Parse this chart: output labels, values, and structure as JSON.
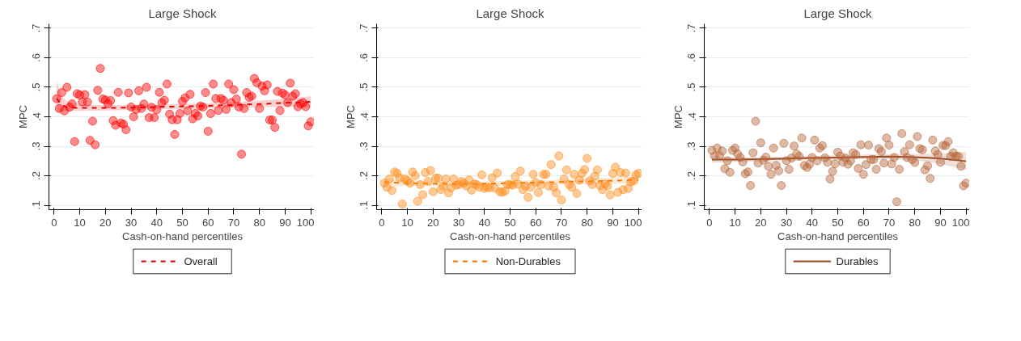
{
  "chart_data": [
    {
      "type": "scatter",
      "title": "Large Shock",
      "xlabel": "Cash-on-hand percentiles",
      "ylabel": "MPC",
      "xlim": [
        -2,
        102
      ],
      "ylim": [
        0.085,
        0.715
      ],
      "xticks": [
        0,
        10,
        20,
        30,
        40,
        50,
        60,
        70,
        80,
        90,
        100
      ],
      "yticks": [
        {
          "value": 0.1,
          "label": ".1"
        },
        {
          "value": 0.2,
          "label": ".2"
        },
        {
          "value": 0.3,
          "label": ".3"
        },
        {
          "value": 0.4,
          "label": ".4"
        },
        {
          "value": 0.5,
          "label": ".5"
        },
        {
          "value": 0.6,
          "label": ".6"
        },
        {
          "value": 0.7,
          "label": ".7"
        }
      ],
      "grid": "y",
      "legend": "bottom",
      "series": [
        {
          "marker": "circle",
          "color": "#ff0000",
          "x": [
            1,
            2,
            3,
            4,
            5,
            6,
            7,
            8,
            9,
            10,
            11,
            12,
            13,
            14,
            15,
            16,
            17,
            18,
            19,
            20,
            21,
            22,
            23,
            24,
            25,
            26,
            27,
            28,
            29,
            30,
            31,
            32,
            33,
            34,
            35,
            36,
            37,
            38,
            39,
            40,
            41,
            42,
            43,
            44,
            45,
            46,
            47,
            48,
            49,
            50,
            51,
            52,
            53,
            54,
            55,
            56,
            57,
            58,
            59,
            60,
            61,
            62,
            63,
            64,
            65,
            66,
            67,
            68,
            69,
            70,
            71,
            72,
            73,
            74,
            75,
            76,
            77,
            78,
            79,
            80,
            81,
            82,
            83,
            84,
            85,
            86,
            87,
            88,
            89,
            90,
            91,
            92,
            93,
            94,
            95,
            96,
            97,
            98,
            99,
            100
          ],
          "values": [
            0.461,
            0.428,
            0.482,
            0.42,
            0.5,
            0.432,
            0.444,
            0.316,
            0.478,
            0.474,
            0.45,
            0.475,
            0.45,
            0.32,
            0.385,
            0.305,
            0.49,
            0.564,
            0.46,
            0.457,
            0.444,
            0.455,
            0.387,
            0.371,
            0.483,
            0.379,
            0.375,
            0.356,
            0.481,
            0.433,
            0.4,
            0.425,
            0.488,
            0.428,
            0.443,
            0.5,
            0.397,
            0.432,
            0.397,
            0.424,
            0.483,
            0.448,
            0.456,
            0.511,
            0.409,
            0.39,
            0.34,
            0.39,
            0.411,
            0.452,
            0.464,
            0.42,
            0.476,
            0.393,
            0.411,
            0.403,
            0.436,
            0.433,
            0.482,
            0.351,
            0.411,
            0.511,
            0.462,
            0.421,
            0.462,
            0.456,
            0.425,
            0.511,
            0.448,
            0.492,
            0.46,
            0.433,
            0.273,
            0.428,
            0.482,
            0.466,
            0.47,
            0.53,
            0.515,
            0.428,
            0.504,
            0.488,
            0.508,
            0.389,
            0.389,
            0.364,
            0.486,
            0.421,
            0.48,
            0.474,
            0.448,
            0.514,
            0.47,
            0.478,
            0.434,
            0.444,
            0.448,
            0.434,
            0.369,
            0.383
          ]
        },
        {
          "type": "line",
          "name": "Overall",
          "color": "#e00000",
          "line_style": "dashed",
          "x": [
            1,
            3,
            5,
            10,
            20,
            30,
            40,
            50,
            60,
            70,
            80,
            90,
            100
          ],
          "values": [
            0.462,
            0.44,
            0.432,
            0.43,
            0.43,
            0.431,
            0.433,
            0.435,
            0.437,
            0.44,
            0.443,
            0.447,
            0.451
          ],
          "lower": [
            0.415,
            0.418,
            0.42,
            0.42,
            0.421,
            0.423,
            0.425,
            0.426,
            0.428,
            0.43,
            0.432,
            0.434,
            0.432
          ],
          "upper": [
            0.52,
            0.47,
            0.452,
            0.442,
            0.44,
            0.44,
            0.441,
            0.443,
            0.446,
            0.45,
            0.455,
            0.461,
            0.47
          ]
        }
      ]
    },
    {
      "type": "scatter",
      "title": "Large Shock",
      "xlabel": "Cash-on-hand percentiles",
      "ylabel": "MPC",
      "xlim": [
        -2,
        102
      ],
      "ylim": [
        0.085,
        0.715
      ],
      "xticks": [
        0,
        10,
        20,
        30,
        40,
        50,
        60,
        70,
        80,
        90,
        100
      ],
      "yticks": [
        {
          "value": 0.1,
          "label": ".1"
        },
        {
          "value": 0.2,
          "label": ".2"
        },
        {
          "value": 0.3,
          "label": ".3"
        },
        {
          "value": 0.4,
          "label": ".4"
        },
        {
          "value": 0.5,
          "label": ".5"
        },
        {
          "value": 0.6,
          "label": ".6"
        },
        {
          "value": 0.7,
          "label": ".7"
        }
      ],
      "grid": "y",
      "legend": "bottom",
      "series": [
        {
          "marker": "circle",
          "color": "#ff8c1a",
          "x": [
            1,
            2,
            3,
            4,
            5,
            6,
            7,
            8,
            9,
            10,
            11,
            12,
            13,
            14,
            15,
            16,
            17,
            18,
            19,
            20,
            21,
            22,
            23,
            24,
            25,
            26,
            27,
            28,
            29,
            30,
            31,
            32,
            33,
            34,
            35,
            36,
            37,
            38,
            39,
            40,
            41,
            42,
            43,
            44,
            45,
            46,
            47,
            48,
            49,
            50,
            51,
            52,
            53,
            54,
            55,
            56,
            57,
            58,
            59,
            60,
            61,
            62,
            63,
            64,
            65,
            66,
            67,
            68,
            69,
            70,
            71,
            72,
            73,
            74,
            75,
            76,
            77,
            78,
            79,
            80,
            81,
            82,
            83,
            84,
            85,
            86,
            87,
            88,
            89,
            90,
            91,
            92,
            93,
            94,
            95,
            96,
            97,
            98,
            99,
            100
          ],
          "values": [
            0.175,
            0.161,
            0.189,
            0.15,
            0.213,
            0.208,
            0.193,
            0.104,
            0.189,
            0.183,
            0.175,
            0.213,
            0.2,
            0.114,
            0.17,
            0.136,
            0.211,
            0.181,
            0.218,
            0.146,
            0.192,
            0.192,
            0.153,
            0.165,
            0.189,
            0.142,
            0.159,
            0.189,
            0.168,
            0.17,
            0.181,
            0.175,
            0.165,
            0.186,
            0.151,
            0.172,
            0.17,
            0.161,
            0.203,
            0.157,
            0.161,
            0.159,
            0.193,
            0.158,
            0.209,
            0.146,
            0.144,
            0.148,
            0.17,
            0.17,
            0.168,
            0.197,
            0.172,
            0.216,
            0.153,
            0.165,
            0.127,
            0.161,
            0.205,
            0.177,
            0.143,
            0.17,
            0.205,
            0.205,
            0.165,
            0.238,
            0.161,
            0.142,
            0.267,
            0.118,
            0.189,
            0.22,
            0.17,
            0.161,
            0.205,
            0.14,
            0.185,
            0.208,
            0.221,
            0.259,
            0.183,
            0.17,
            0.199,
            0.22,
            0.167,
            0.153,
            0.172,
            0.165,
            0.135,
            0.208,
            0.229,
            0.144,
            0.211,
            0.153,
            0.209,
            0.157,
            0.179,
            0.182,
            0.203,
            0.208
          ]
        },
        {
          "type": "line",
          "name": "Non-Durables",
          "color": "#f07800",
          "line_style": "dashed",
          "x": [
            1,
            10,
            20,
            30,
            40,
            50,
            60,
            70,
            80,
            90,
            100
          ],
          "values": [
            0.178,
            0.175,
            0.173,
            0.172,
            0.173,
            0.175,
            0.177,
            0.179,
            0.181,
            0.183,
            0.186
          ],
          "lower": [
            0.165,
            0.166,
            0.165,
            0.165,
            0.166,
            0.167,
            0.169,
            0.171,
            0.172,
            0.173,
            0.173
          ],
          "upper": [
            0.191,
            0.184,
            0.181,
            0.179,
            0.18,
            0.183,
            0.185,
            0.187,
            0.19,
            0.193,
            0.199
          ]
        }
      ]
    },
    {
      "type": "scatter",
      "title": "Large Shock",
      "xlabel": "Cash-on-hand percentiles",
      "ylabel": "MPC",
      "xlim": [
        -2,
        102
      ],
      "ylim": [
        0.085,
        0.715
      ],
      "xticks": [
        0,
        10,
        20,
        30,
        40,
        50,
        60,
        70,
        80,
        90,
        100
      ],
      "yticks": [
        {
          "value": 0.1,
          "label": ".1"
        },
        {
          "value": 0.2,
          "label": ".2"
        },
        {
          "value": 0.3,
          "label": ".3"
        },
        {
          "value": 0.4,
          "label": ".4"
        },
        {
          "value": 0.5,
          "label": ".5"
        },
        {
          "value": 0.6,
          "label": ".6"
        },
        {
          "value": 0.7,
          "label": ".7"
        }
      ],
      "grid": "y",
      "legend": "bottom",
      "series": [
        {
          "marker": "circle",
          "color": "#b5653a",
          "x": [
            1,
            2,
            3,
            4,
            5,
            6,
            7,
            8,
            9,
            10,
            11,
            12,
            13,
            14,
            15,
            16,
            17,
            18,
            19,
            20,
            21,
            22,
            23,
            24,
            25,
            26,
            27,
            28,
            29,
            30,
            31,
            32,
            33,
            34,
            35,
            36,
            37,
            38,
            39,
            40,
            41,
            42,
            43,
            44,
            45,
            46,
            47,
            48,
            49,
            50,
            51,
            52,
            53,
            54,
            55,
            56,
            57,
            58,
            59,
            60,
            61,
            62,
            63,
            64,
            65,
            66,
            67,
            68,
            69,
            70,
            71,
            72,
            73,
            74,
            75,
            76,
            77,
            78,
            79,
            80,
            81,
            82,
            83,
            84,
            85,
            86,
            87,
            88,
            89,
            90,
            91,
            92,
            93,
            94,
            95,
            96,
            97,
            98,
            99,
            100
          ],
          "values": [
            0.286,
            0.267,
            0.294,
            0.268,
            0.284,
            0.224,
            0.251,
            0.212,
            0.286,
            0.294,
            0.274,
            0.262,
            0.247,
            0.207,
            0.213,
            0.167,
            0.278,
            0.385,
            0.243,
            0.312,
            0.253,
            0.263,
            0.232,
            0.205,
            0.294,
            0.235,
            0.217,
            0.167,
            0.31,
            0.251,
            0.222,
            0.26,
            0.301,
            0.274,
            0.266,
            0.328,
            0.235,
            0.228,
            0.239,
            0.262,
            0.321,
            0.251,
            0.294,
            0.302,
            0.261,
            0.246,
            0.189,
            0.215,
            0.241,
            0.28,
            0.267,
            0.246,
            0.26,
            0.239,
            0.251,
            0.278,
            0.272,
            0.225,
            0.305,
            0.205,
            0.238,
            0.304,
            0.255,
            0.255,
            0.222,
            0.292,
            0.282,
            0.243,
            0.328,
            0.304,
            0.24,
            0.262,
            0.112,
            0.222,
            0.343,
            0.282,
            0.262,
            0.305,
            0.255,
            0.245,
            0.333,
            0.292,
            0.288,
            0.22,
            0.234,
            0.191,
            0.321,
            0.284,
            0.272,
            0.246,
            0.303,
            0.302,
            0.316,
            0.266,
            0.278,
            0.266,
            0.266,
            0.232,
            0.166,
            0.175
          ]
        },
        {
          "type": "line",
          "name": "Durables",
          "color": "#9c4a22",
          "line_style": "solid",
          "x": [
            1,
            10,
            20,
            30,
            40,
            50,
            60,
            70,
            80,
            85,
            90,
            95,
            100
          ],
          "values": [
            0.255,
            0.255,
            0.256,
            0.258,
            0.26,
            0.262,
            0.264,
            0.265,
            0.263,
            0.261,
            0.258,
            0.254,
            0.249
          ],
          "lower": [
            0.244,
            0.247,
            0.249,
            0.251,
            0.253,
            0.255,
            0.256,
            0.256,
            0.252,
            0.247,
            0.24,
            0.23,
            0.22
          ],
          "upper": [
            0.266,
            0.263,
            0.263,
            0.265,
            0.267,
            0.269,
            0.272,
            0.274,
            0.274,
            0.275,
            0.276,
            0.278,
            0.28
          ]
        }
      ]
    }
  ]
}
